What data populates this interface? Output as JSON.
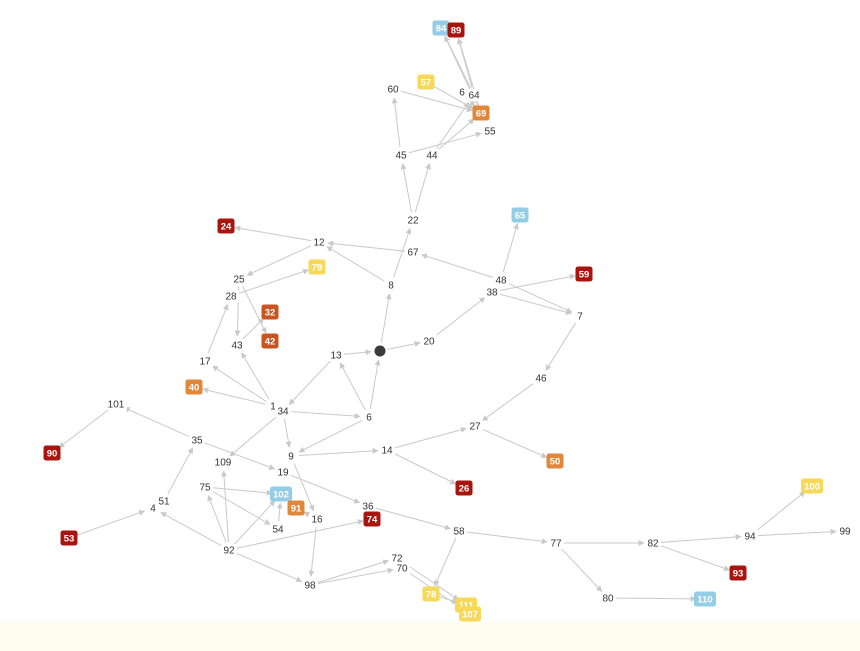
{
  "colors": {
    "red": "#a8150f",
    "orange": "#c9541f",
    "amber": "#e0873a",
    "yellow": "#f7d95a",
    "blue": "#94cde6",
    "hub": "#3a3a3a",
    "edge": "#c9c9c9",
    "label": "#333333",
    "background": "#ffffff",
    "footer": "#fffdf0"
  },
  "hub": {
    "id": "hub",
    "name": "dark-circle-node"
  },
  "nodes": [
    {
      "id": "60",
      "label": "60",
      "style": "plain"
    },
    {
      "id": "57",
      "label": "57",
      "style": "yellow"
    },
    {
      "id": "6b",
      "label": "6",
      "style": "plain"
    },
    {
      "id": "64",
      "label": "64",
      "style": "plain"
    },
    {
      "id": "84",
      "label": "84",
      "style": "blue"
    },
    {
      "id": "89",
      "label": "89",
      "style": "red"
    },
    {
      "id": "69",
      "label": "69",
      "style": "amber"
    },
    {
      "id": "55",
      "label": "55",
      "style": "plain"
    },
    {
      "id": "45",
      "label": "45",
      "style": "plain"
    },
    {
      "id": "44",
      "label": "44",
      "style": "plain"
    },
    {
      "id": "22",
      "label": "22",
      "style": "plain"
    },
    {
      "id": "65",
      "label": "65",
      "style": "blue"
    },
    {
      "id": "24",
      "label": "24",
      "style": "red"
    },
    {
      "id": "12",
      "label": "12",
      "style": "plain"
    },
    {
      "id": "67",
      "label": "67",
      "style": "plain"
    },
    {
      "id": "25",
      "label": "25",
      "style": "plain"
    },
    {
      "id": "79",
      "label": "79",
      "style": "yellow"
    },
    {
      "id": "48",
      "label": "48",
      "style": "plain"
    },
    {
      "id": "59",
      "label": "59",
      "style": "red"
    },
    {
      "id": "38",
      "label": "38",
      "style": "plain"
    },
    {
      "id": "8",
      "label": "8",
      "style": "plain"
    },
    {
      "id": "28",
      "label": "28",
      "style": "plain"
    },
    {
      "id": "32",
      "label": "32",
      "style": "orange"
    },
    {
      "id": "7",
      "label": "7",
      "style": "plain"
    },
    {
      "id": "42",
      "label": "42",
      "style": "orange"
    },
    {
      "id": "43",
      "label": "43",
      "style": "plain"
    },
    {
      "id": "20",
      "label": "20",
      "style": "plain"
    },
    {
      "id": "13",
      "label": "13",
      "style": "plain"
    },
    {
      "id": "17",
      "label": "17",
      "style": "plain"
    },
    {
      "id": "46",
      "label": "46",
      "style": "plain"
    },
    {
      "id": "40",
      "label": "40",
      "style": "amber"
    },
    {
      "id": "101",
      "label": "101",
      "style": "plain"
    },
    {
      "id": "1x",
      "label": "1",
      "style": "plain"
    },
    {
      "id": "34",
      "label": "34",
      "style": "plain"
    },
    {
      "id": "6",
      "label": "6",
      "style": "plain"
    },
    {
      "id": "27",
      "label": "27",
      "style": "plain"
    },
    {
      "id": "35",
      "label": "35",
      "style": "plain"
    },
    {
      "id": "90",
      "label": "90",
      "style": "red"
    },
    {
      "id": "14",
      "label": "14",
      "style": "plain"
    },
    {
      "id": "9",
      "label": "9",
      "style": "plain"
    },
    {
      "id": "50",
      "label": "50",
      "style": "amber"
    },
    {
      "id": "109",
      "label": "109",
      "style": "plain"
    },
    {
      "id": "19",
      "label": "19",
      "style": "plain"
    },
    {
      "id": "26",
      "label": "26",
      "style": "red"
    },
    {
      "id": "75",
      "label": "75",
      "style": "plain"
    },
    {
      "id": "102",
      "label": "102",
      "style": "blue"
    },
    {
      "id": "100",
      "label": "100",
      "style": "yellow"
    },
    {
      "id": "51",
      "label": "51",
      "style": "plain"
    },
    {
      "id": "4x",
      "label": "4",
      "style": "plain"
    },
    {
      "id": "91",
      "label": "91",
      "style": "amber"
    },
    {
      "id": "36",
      "label": "36",
      "style": "plain"
    },
    {
      "id": "16",
      "label": "16",
      "style": "plain"
    },
    {
      "id": "74",
      "label": "74",
      "style": "red"
    },
    {
      "id": "54",
      "label": "54",
      "style": "plain"
    },
    {
      "id": "58",
      "label": "58",
      "style": "plain"
    },
    {
      "id": "53",
      "label": "53",
      "style": "red"
    },
    {
      "id": "92",
      "label": "92",
      "style": "plain"
    },
    {
      "id": "77",
      "label": "77",
      "style": "plain"
    },
    {
      "id": "82",
      "label": "82",
      "style": "plain"
    },
    {
      "id": "94",
      "label": "94",
      "style": "plain"
    },
    {
      "id": "99",
      "label": "99",
      "style": "plain"
    },
    {
      "id": "72",
      "label": "72",
      "style": "plain"
    },
    {
      "id": "70",
      "label": "70",
      "style": "plain"
    },
    {
      "id": "93",
      "label": "93",
      "style": "red"
    },
    {
      "id": "98",
      "label": "98",
      "style": "plain"
    },
    {
      "id": "78",
      "label": "78",
      "style": "yellow"
    },
    {
      "id": "111",
      "label": "111",
      "style": "yellow"
    },
    {
      "id": "107",
      "label": "107",
      "style": "yellow"
    },
    {
      "id": "80",
      "label": "80",
      "style": "plain"
    },
    {
      "id": "110",
      "label": "110",
      "style": "blue"
    }
  ],
  "edges": [
    [
      "22",
      "45"
    ],
    [
      "22",
      "44"
    ],
    [
      "8",
      "22"
    ],
    [
      "45",
      "60"
    ],
    [
      "60",
      "69"
    ],
    [
      "44",
      "69"
    ],
    [
      "44",
      "64"
    ],
    [
      "45",
      "55"
    ],
    [
      "57",
      "69"
    ],
    [
      "64",
      "84"
    ],
    [
      "64",
      "89"
    ],
    [
      "69",
      "84"
    ],
    [
      "69",
      "89"
    ],
    [
      "6b",
      "69"
    ],
    [
      "8",
      "12"
    ],
    [
      "12",
      "24"
    ],
    [
      "67",
      "12"
    ],
    [
      "12",
      "25"
    ],
    [
      "25",
      "42"
    ],
    [
      "25",
      "43"
    ],
    [
      "28",
      "79"
    ],
    [
      "17",
      "28"
    ],
    [
      "1x",
      "17"
    ],
    [
      "43",
      "32"
    ],
    [
      "1x",
      "43"
    ],
    [
      "1x",
      "40"
    ],
    [
      "hub",
      "8"
    ],
    [
      "hub",
      "20"
    ],
    [
      "13",
      "hub"
    ],
    [
      "6",
      "hub"
    ],
    [
      "20",
      "38"
    ],
    [
      "38",
      "59"
    ],
    [
      "48",
      "65"
    ],
    [
      "48",
      "67"
    ],
    [
      "48",
      "7"
    ],
    [
      "38",
      "7"
    ],
    [
      "7",
      "46"
    ],
    [
      "46",
      "27"
    ],
    [
      "27",
      "50"
    ],
    [
      "14",
      "27"
    ],
    [
      "14",
      "26"
    ],
    [
      "9",
      "14"
    ],
    [
      "6",
      "9"
    ],
    [
      "6",
      "13"
    ],
    [
      "13",
      "34"
    ],
    [
      "34",
      "6"
    ],
    [
      "34",
      "9"
    ],
    [
      "35",
      "101"
    ],
    [
      "101",
      "90"
    ],
    [
      "35",
      "19"
    ],
    [
      "19",
      "36"
    ],
    [
      "34",
      "109"
    ],
    [
      "51",
      "35"
    ],
    [
      "53",
      "4x"
    ],
    [
      "4x",
      "51"
    ],
    [
      "92",
      "4x"
    ],
    [
      "92",
      "109"
    ],
    [
      "92",
      "75"
    ],
    [
      "75",
      "102"
    ],
    [
      "75",
      "54"
    ],
    [
      "54",
      "102"
    ],
    [
      "92",
      "102"
    ],
    [
      "92",
      "98"
    ],
    [
      "92",
      "74"
    ],
    [
      "16",
      "91"
    ],
    [
      "9",
      "16"
    ],
    [
      "16",
      "98"
    ],
    [
      "98",
      "72"
    ],
    [
      "98",
      "70"
    ],
    [
      "36",
      "74"
    ],
    [
      "36",
      "58"
    ],
    [
      "58",
      "78"
    ],
    [
      "58",
      "77"
    ],
    [
      "78",
      "111"
    ],
    [
      "70",
      "107"
    ],
    [
      "72",
      "111"
    ],
    [
      "77",
      "82"
    ],
    [
      "77",
      "80"
    ],
    [
      "82",
      "93"
    ],
    [
      "82",
      "94"
    ],
    [
      "94",
      "100"
    ],
    [
      "94",
      "99"
    ],
    [
      "80",
      "110"
    ]
  ]
}
